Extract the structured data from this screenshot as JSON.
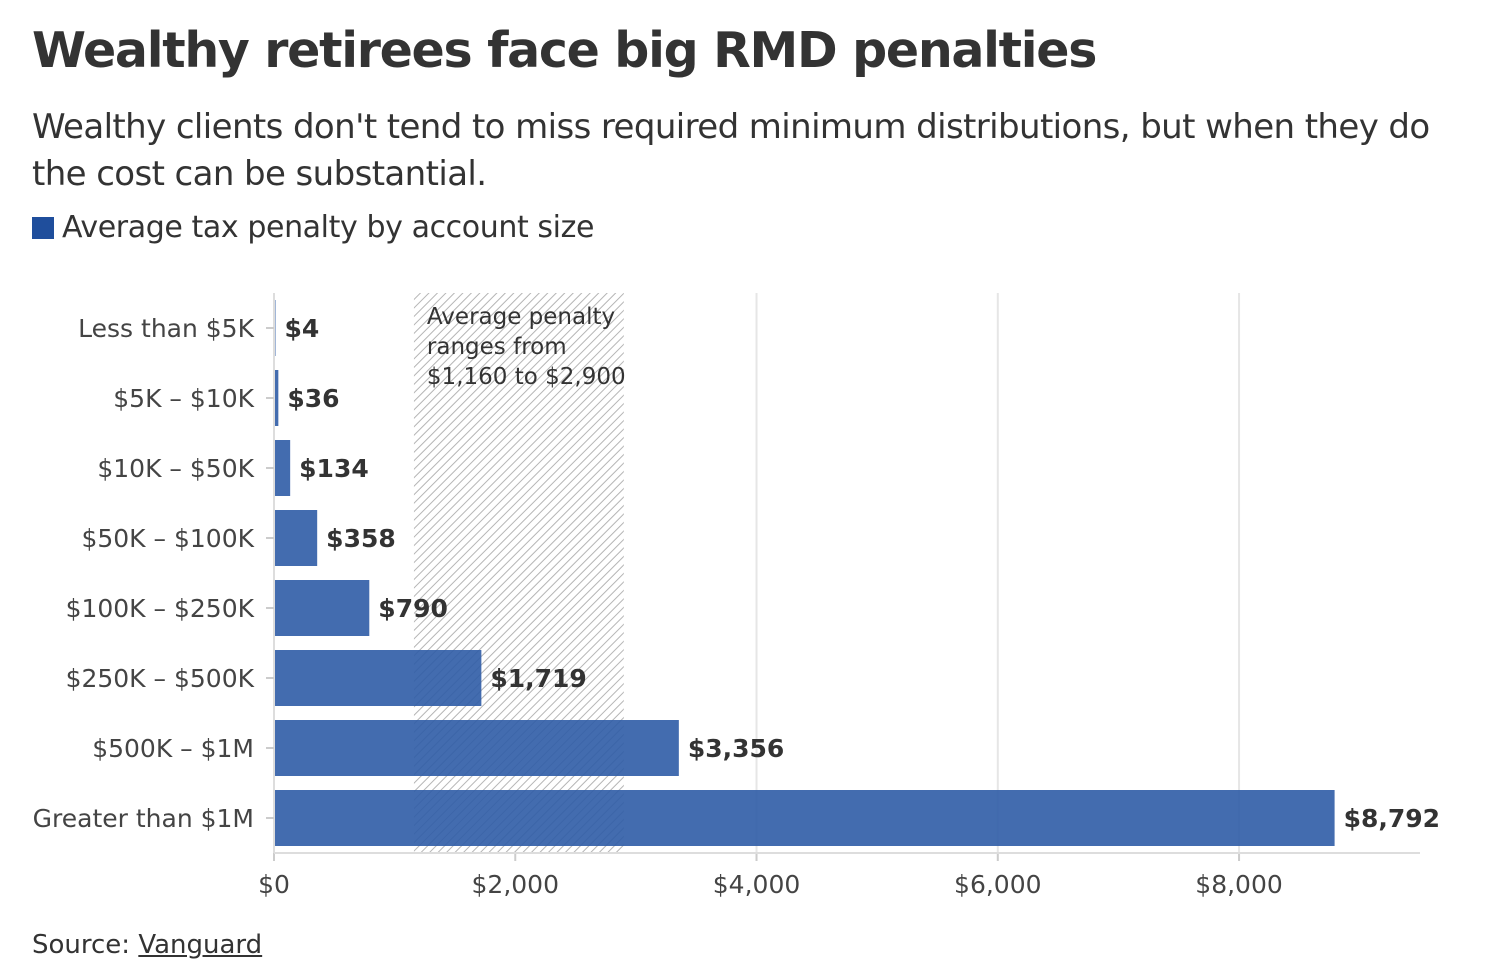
{
  "header": {
    "title": "Wealthy retirees face big RMD penalties",
    "subtitle": "Wealthy clients don't tend to miss required minimum distributions, but when they do the cost can be substantial."
  },
  "legend": {
    "label": "Average tax penalty by account size",
    "color": "#1f4e9c"
  },
  "footer": {
    "source_prefix": "Source: ",
    "source_link": "Vanguard"
  },
  "chart_data": {
    "type": "bar",
    "orientation": "horizontal",
    "categories": [
      "Less than $5K",
      "$5K – $10K",
      "$10K – $50K",
      "$50K – $100K",
      "$100K – $250K",
      "$250K – $500K",
      "$500K – $1M",
      "Greater than $1M"
    ],
    "series": [
      {
        "name": "Average tax penalty by account size",
        "values": [
          4,
          36,
          134,
          358,
          790,
          1719,
          3356,
          8792
        ],
        "labels": [
          "$4",
          "$36",
          "$134",
          "$358",
          "$790",
          "$1,719",
          "$3,356",
          "$8,792"
        ]
      }
    ],
    "xlim": [
      0,
      9500
    ],
    "xticks": [
      0,
      2000,
      4000,
      6000,
      8000
    ],
    "xtick_labels": [
      "$0",
      "$2,000",
      "$4,000",
      "$6,000",
      "$8,000"
    ],
    "grid": true,
    "bar_color": "#2f5ca6",
    "highlight_band": {
      "from": 1160,
      "to": 2900,
      "pattern": "diagonal-hatch",
      "annotation": [
        "Average penalty",
        "ranges from",
        "$1,160 to $2,900"
      ]
    }
  }
}
